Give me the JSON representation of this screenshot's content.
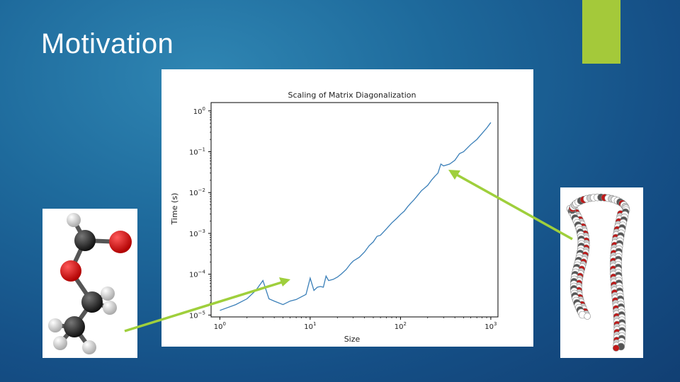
{
  "slide": {
    "title": "Motivation",
    "accent_color": "#a4c93a",
    "arrow_color": "#9fcf3c"
  },
  "chart_data": {
    "type": "line",
    "title": "Scaling of Matrix Diagonalization",
    "xlabel": "Size",
    "ylabel": "Time (s)",
    "xscale": "log",
    "yscale": "log",
    "xlim": [
      0.8,
      1200
    ],
    "ylim": [
      9e-06,
      1.6
    ],
    "xticks": [
      {
        "value": 1,
        "base": "10",
        "exp": "0"
      },
      {
        "value": 10,
        "base": "10",
        "exp": "1"
      },
      {
        "value": 100,
        "base": "10",
        "exp": "2"
      },
      {
        "value": 1000,
        "base": "10",
        "exp": "3"
      }
    ],
    "yticks": [
      {
        "value": 1e-05,
        "base": "10",
        "exp": "−5"
      },
      {
        "value": 0.0001,
        "base": "10",
        "exp": "−4"
      },
      {
        "value": 0.001,
        "base": "10",
        "exp": "−3"
      },
      {
        "value": 0.01,
        "base": "10",
        "exp": "−2"
      },
      {
        "value": 0.1,
        "base": "10",
        "exp": "−1"
      },
      {
        "value": 1,
        "base": "10",
        "exp": "0"
      }
    ],
    "series": [
      {
        "color": "#3a7fb8",
        "x": [
          1,
          1.5,
          2,
          2.5,
          3,
          3.5,
          4,
          5,
          6,
          7,
          8,
          9,
          10,
          11,
          12,
          13,
          14,
          15,
          16,
          18,
          20,
          22,
          25,
          28,
          30,
          35,
          40,
          45,
          50,
          55,
          60,
          70,
          80,
          90,
          100,
          110,
          120,
          130,
          140,
          150,
          170,
          200,
          220,
          240,
          260,
          280,
          300,
          350,
          400,
          450,
          500,
          600,
          700,
          800,
          900,
          1000
        ],
        "y": [
          1.3e-05,
          1.8e-05,
          2.5e-05,
          4e-05,
          7e-05,
          2.5e-05,
          2.2e-05,
          1.8e-05,
          2.2e-05,
          2.4e-05,
          2.8e-05,
          3.2e-05,
          8e-05,
          4e-05,
          4.8e-05,
          5e-05,
          4.8e-05,
          9e-05,
          7e-05,
          7.5e-05,
          8.5e-05,
          0.0001,
          0.00013,
          0.00018,
          0.00021,
          0.00026,
          0.00035,
          0.0005,
          0.00062,
          0.00085,
          0.0009,
          0.0013,
          0.0018,
          0.0023,
          0.0029,
          0.0035,
          0.0045,
          0.0055,
          0.0065,
          0.0078,
          0.011,
          0.015,
          0.02,
          0.025,
          0.03,
          0.05,
          0.045,
          0.05,
          0.062,
          0.09,
          0.1,
          0.15,
          0.2,
          0.28,
          0.38,
          0.52
        ]
      }
    ]
  }
}
